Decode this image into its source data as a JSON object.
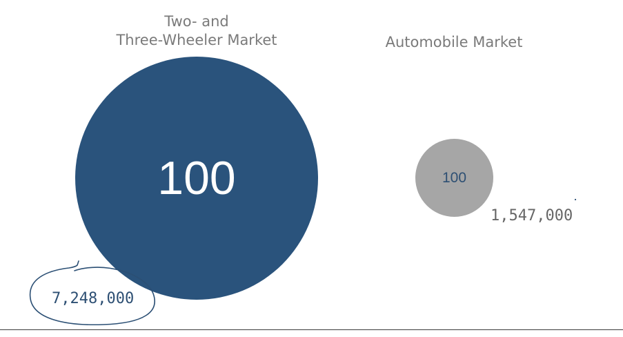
{
  "chart_data": {
    "type": "bubble",
    "series": [
      {
        "name_lines": [
          "Two- and",
          "Three-Wheeler Market"
        ],
        "index_label": "100",
        "volume_label": "7,248,000",
        "value": 7248000
      },
      {
        "name": "Automobile Market",
        "index_label": "100",
        "volume_label": "1,547,000",
        "value": 1547000
      }
    ]
  },
  "colors": {
    "large_bubble": "#2a537c",
    "small_bubble": "#a6a6a6",
    "title_text": "#7a7a7a",
    "left_volume_text": "#2d4f73",
    "right_volume_text": "#666666",
    "small_bubble_label": "#2d4f73",
    "annotation_ink": "#2b4f74"
  }
}
